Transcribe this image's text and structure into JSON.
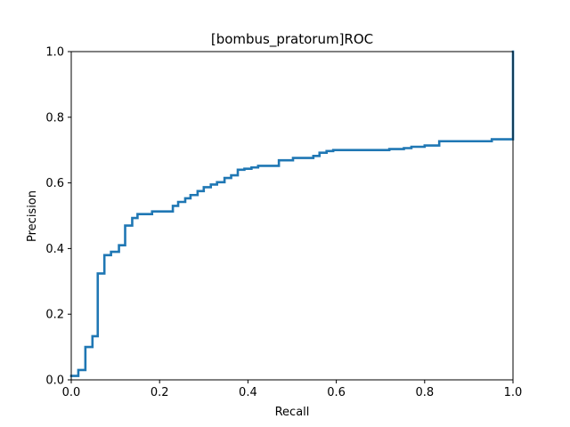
{
  "chart_data": {
    "type": "line",
    "title": "[bombus_pratorum]ROC",
    "xlabel": "Recall",
    "ylabel": "Precision",
    "xlim": [
      0,
      1
    ],
    "ylim": [
      0,
      1
    ],
    "xticks": [
      "0.0",
      "0.2",
      "0.4",
      "0.6",
      "0.8",
      "1.0"
    ],
    "yticks": [
      "0.0",
      "0.2",
      "0.4",
      "0.6",
      "0.8",
      "1.0"
    ],
    "grid": false,
    "line_color": "#1f77b4",
    "series": [
      {
        "x": [
          0.0,
          0.016,
          0.016,
          0.032,
          0.032,
          0.048,
          0.048,
          0.06,
          0.06,
          0.075,
          0.075,
          0.09,
          0.09,
          0.108,
          0.108,
          0.122,
          0.122,
          0.138,
          0.138,
          0.15,
          0.15,
          0.183,
          0.183,
          0.23,
          0.23,
          0.242,
          0.242,
          0.258,
          0.258,
          0.27,
          0.27,
          0.286,
          0.286,
          0.3,
          0.3,
          0.316,
          0.316,
          0.33,
          0.33,
          0.347,
          0.347,
          0.362,
          0.362,
          0.377,
          0.377,
          0.392,
          0.392,
          0.408,
          0.408,
          0.423,
          0.423,
          0.47,
          0.47,
          0.502,
          0.502,
          0.548,
          0.548,
          0.562,
          0.562,
          0.578,
          0.578,
          0.593,
          0.593,
          0.72,
          0.72,
          0.753,
          0.753,
          0.77,
          0.77,
          0.8,
          0.8,
          0.833,
          0.833,
          0.952,
          0.952,
          1.0,
          1.0
        ],
        "y": [
          0.012,
          0.012,
          0.03,
          0.03,
          0.1,
          0.1,
          0.133,
          0.133,
          0.324,
          0.324,
          0.38,
          0.38,
          0.39,
          0.39,
          0.41,
          0.41,
          0.47,
          0.47,
          0.493,
          0.493,
          0.505,
          0.505,
          0.513,
          0.513,
          0.53,
          0.53,
          0.542,
          0.542,
          0.553,
          0.553,
          0.563,
          0.563,
          0.575,
          0.575,
          0.587,
          0.587,
          0.595,
          0.595,
          0.602,
          0.602,
          0.615,
          0.615,
          0.623,
          0.623,
          0.64,
          0.64,
          0.643,
          0.643,
          0.647,
          0.647,
          0.652,
          0.652,
          0.669,
          0.669,
          0.676,
          0.676,
          0.682,
          0.682,
          0.692,
          0.692,
          0.697,
          0.697,
          0.7,
          0.7,
          0.703,
          0.703,
          0.706,
          0.706,
          0.71,
          0.71,
          0.714,
          0.714,
          0.727,
          0.727,
          0.733,
          0.733,
          1.0
        ]
      }
    ]
  }
}
